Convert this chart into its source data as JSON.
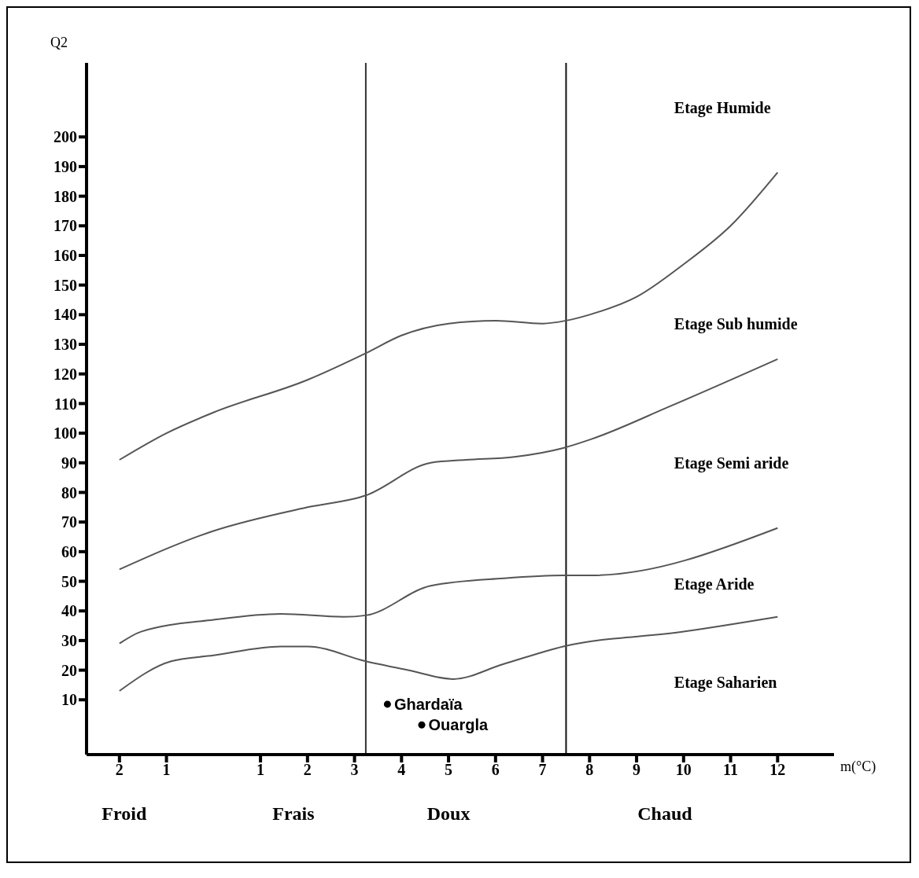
{
  "chart_data": {
    "type": "line",
    "xlabel": "m(°C)",
    "ylabel": "Q2",
    "xlim": [
      -2.7,
      13.2
    ],
    "xticks": [
      {
        "value": -2,
        "label": "2"
      },
      {
        "value": -1,
        "label": "1"
      },
      1,
      2,
      3,
      4,
      5,
      6,
      7,
      8,
      9,
      10,
      11,
      12
    ],
    "ylim": [
      -8.5,
      225
    ],
    "yticks": [
      10,
      20,
      30,
      40,
      50,
      60,
      70,
      80,
      90,
      100,
      110,
      120,
      130,
      140,
      150,
      160,
      170,
      180,
      190,
      200
    ],
    "series": [
      {
        "color": "#555555",
        "x": [
          -2,
          -1,
          0,
          2,
          3.24,
          4,
          5,
          6,
          7,
          7.5,
          8,
          9,
          10,
          11,
          12
        ],
        "values": [
          91,
          100,
          107,
          118,
          127,
          133,
          137,
          138,
          137,
          138,
          140,
          146,
          157,
          170,
          188
        ]
      },
      {
        "color": "#555555",
        "x": [
          -2,
          0,
          2,
          3.24,
          4.62,
          5.37,
          6.4,
          7.44,
          8.04,
          9.7,
          12
        ],
        "values": [
          54,
          67,
          75,
          79,
          90,
          91,
          92,
          95,
          98,
          109,
          125
        ]
      },
      {
        "color": "#555555",
        "x": [
          -2,
          -1.54,
          0,
          1.43,
          2.77,
          3.24,
          4.62,
          6.16,
          7.44,
          8.04,
          12
        ],
        "values": [
          29,
          33,
          37,
          39,
          38,
          38.5,
          48.5,
          51,
          52,
          52,
          68
        ]
      },
      {
        "color": "#555555",
        "x": [
          -2,
          -0.9,
          0,
          1.43,
          2,
          3.24,
          4.14,
          5.1,
          6.16,
          7.44,
          10,
          12
        ],
        "values": [
          13,
          23,
          25,
          28,
          28,
          23,
          20,
          17,
          22,
          28,
          33,
          38
        ]
      },
      {
        "type": "scatter",
        "name": "Ghardaïa",
        "color": "#000000",
        "marker": "circle",
        "x": [
          3.7
        ],
        "values": [
          8.5
        ]
      },
      {
        "type": "scatter",
        "name": "Ouargla",
        "color": "#000000",
        "marker": "circle",
        "x": [
          4.43
        ],
        "values": [
          1.5
        ]
      }
    ],
    "ref_lines": [
      {
        "axis": "x",
        "value": 3.24,
        "color": "#333333"
      },
      {
        "axis": "x",
        "value": 7.5,
        "color": "#111111"
      }
    ],
    "annotations": [
      "Froid",
      "Frais",
      "Doux",
      "Chaud",
      "Etage Humide",
      "Etage Sub humide",
      "Etage Semi aride",
      "Etage Aride",
      "Etage Saharien"
    ]
  }
}
